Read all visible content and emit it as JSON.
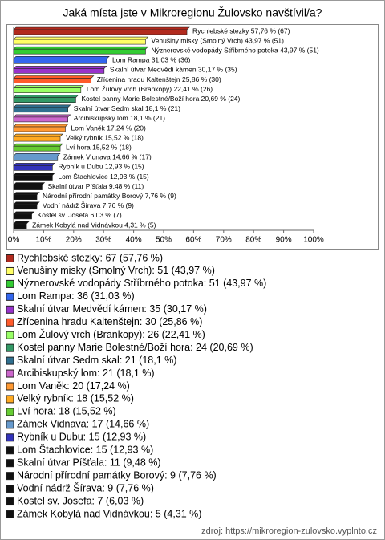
{
  "chart_data": {
    "type": "bar",
    "orientation": "horizontal",
    "title": "Jaká místa jste v Mikroregionu Žulovsko navštívil/a?",
    "values": [
      57.76,
      43.97,
      43.97,
      31.03,
      30.17,
      25.86,
      22.41,
      20.69,
      18.1,
      18.1,
      17.24,
      15.52,
      15.52,
      14.66,
      12.93,
      12.93,
      9.48,
      7.76,
      7.76,
      6.03,
      4.31
    ],
    "value_labels": [
      "Rychlebské stezky 57,76 % (67)",
      "Venušiny misky (Smolný Vrch) 43,97 % (51)",
      "Nýznerovské vodopády Stříbrného potoka 43,97 % (51)",
      "Lom Rampa 31,03 % (36)",
      "Skalní útvar Medvědí kámen 30,17 % (35)",
      "Zřícenina hradu Kaltenštejn 25,86 % (30)",
      "Lom Žulový vrch (Brankopy) 22,41 % (26)",
      "Kostel panny Marie Bolestné/Boží hora 20,69 % (24)",
      "Skalní útvar Sedm skal 18,1 % (21)",
      "Arcibiskupský lom 18,1 % (21)",
      "Lom Vaněk 17,24 % (20)",
      "Velký rybník 15,52 % (18)",
      "Lví hora 15,52 % (18)",
      "Zámek Vidnava 14,66 % (17)",
      "Rybník u Dubu 12,93 % (15)",
      "Lom Štachlovice 12,93 % (15)",
      "Skalní útvar Píšťala 9,48 % (11)",
      "Národní přírodní památky Borový 7,76 % (9)",
      "Vodní nádrž Šírava 7,76 % (9)",
      "Kostel sv. Josefa 6,03 % (7)",
      "Zámek Kobylá nad Vidnávkou 4,31 % (5)"
    ],
    "legend_labels": [
      "Rychlebské stezky: 67 (57,76 %)",
      "Venušiny misky (Smolný Vrch): 51 (43,97 %)",
      "Nýznerovské vodopády Stříbrného potoka: 51 (43,97 %)",
      "Lom Rampa: 36 (31,03 %)",
      "Skalní útvar Medvědí kámen: 35 (30,17 %)",
      "Zřícenina hradu Kaltenštejn: 30 (25,86 %)",
      "Lom Žulový vrch (Brankopy): 26 (22,41 %)",
      "Kostel panny Marie Bolestné/Boží hora: 24 (20,69 %)",
      "Skalní útvar Sedm skal: 21 (18,1 %)",
      "Arcibiskupský lom: 21 (18,1 %)",
      "Lom Vaněk: 20 (17,24 %)",
      "Velký rybník: 18 (15,52 %)",
      "Lví hora: 18 (15,52 %)",
      "Zámek Vidnava: 17 (14,66 %)",
      "Rybník u Dubu: 15 (12,93 %)",
      "Lom Štachlovice: 15 (12,93 %)",
      "Skalní útvar Píšťala: 11 (9,48 %)",
      "Národní přírodní památky Borový: 9 (7,76 %)",
      "Vodní nádrž Šírava: 9 (7,76 %)",
      "Kostel sv. Josefa: 7 (6,03 %)",
      "Zámek Kobylá nad Vidnávkou: 5 (4,31 %)"
    ],
    "colors": [
      "#b22a1e",
      "#ffff66",
      "#33cc33",
      "#3366ee",
      "#9933cc",
      "#ff5a2a",
      "#99ff66",
      "#339966",
      "#2f6f8f",
      "#cc66cc",
      "#ff9933",
      "#ffaa22",
      "#66cc33",
      "#6699cc",
      "#3333bb",
      "#111111",
      "#111111",
      "#111111",
      "#111111",
      "#111111",
      "#111111"
    ],
    "xlim": [
      0,
      100
    ],
    "xticks": [
      {
        "value": 0,
        "label": "0%"
      },
      {
        "value": 10,
        "label": "10%"
      },
      {
        "value": 20,
        "label": "20%"
      },
      {
        "value": 30,
        "label": "30%"
      },
      {
        "value": 40,
        "label": "40%"
      },
      {
        "value": 50,
        "label": "50%"
      },
      {
        "value": 60,
        "label": "60%"
      },
      {
        "value": 70,
        "label": "70%"
      },
      {
        "value": 80,
        "label": "80%"
      },
      {
        "value": 90,
        "label": "90%"
      },
      {
        "value": 100,
        "label": "100%"
      }
    ],
    "source": "zdroj: https://mikroregion-zulovsko.vyplnto.cz"
  }
}
